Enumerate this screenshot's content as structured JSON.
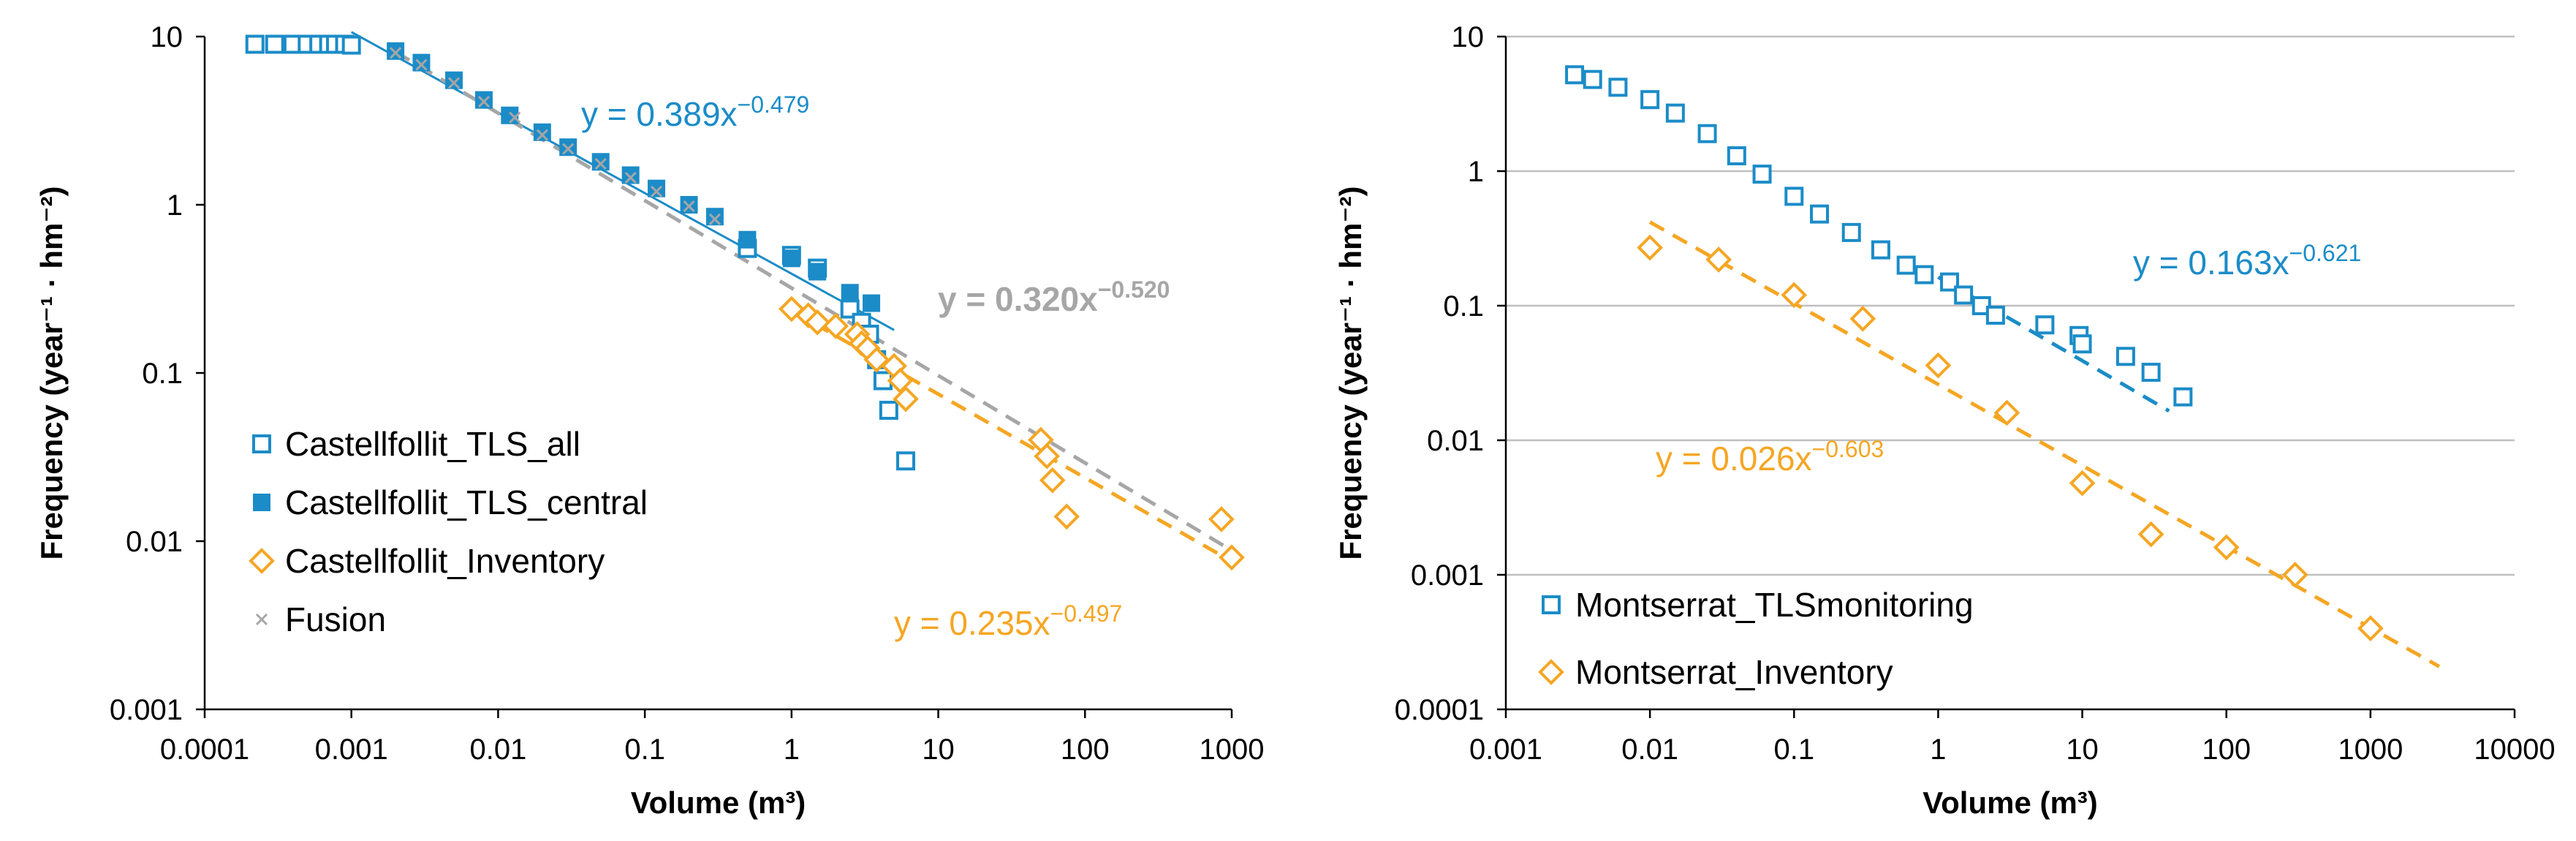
{
  "chart_data": [
    {
      "type": "scatter",
      "id": "castellfollit",
      "title": "",
      "xlabel": "Volume (m³)",
      "ylabel": "Frequency (year⁻¹ · hm⁻²)",
      "xscale": "log",
      "yscale": "log",
      "xlim": [
        0.0001,
        1000
      ],
      "ylim": [
        0.001,
        10
      ],
      "xticks": [
        0.0001,
        0.001,
        0.01,
        0.1,
        1,
        10,
        100,
        1000
      ],
      "xtick_labels": [
        "0.0001",
        "0.001",
        "0.01",
        "0.1",
        "1",
        "10",
        "100",
        "1000"
      ],
      "yticks": [
        0.001,
        0.01,
        0.1,
        1,
        10
      ],
      "ytick_labels": [
        "0.001",
        "0.01",
        "0.1",
        "1",
        "10"
      ],
      "grid": false,
      "legend_position": "bottom-left",
      "series": [
        {
          "name": "Castellfollit_TLS_all",
          "marker": "square-open",
          "color": "#1b8cc8",
          "x": [
            0.00022,
            0.0003,
            0.0004,
            0.0005,
            0.0006,
            0.0007,
            0.00078,
            0.0009,
            0.001,
            0.5,
            1.0,
            1.5,
            2.5,
            3.0,
            3.4,
            3.8,
            4.2,
            4.6,
            6.0
          ],
          "y": [
            9.0,
            9.0,
            9.0,
            9.0,
            9.0,
            9.0,
            9.0,
            9.0,
            8.9,
            0.55,
            0.5,
            0.42,
            0.24,
            0.2,
            0.17,
            0.12,
            0.09,
            0.06,
            0.03
          ]
        },
        {
          "name": "Castellfollit_TLS_central",
          "marker": "square-filled",
          "color": "#1b8cc8",
          "x": [
            0.002,
            0.003,
            0.005,
            0.008,
            0.012,
            0.02,
            0.03,
            0.05,
            0.08,
            0.12,
            0.2,
            0.3,
            0.5,
            1.0,
            1.5,
            2.5,
            3.5
          ],
          "y": [
            8.2,
            7.0,
            5.5,
            4.2,
            3.4,
            2.7,
            2.2,
            1.8,
            1.5,
            1.25,
            1.0,
            0.85,
            0.62,
            0.48,
            0.4,
            0.3,
            0.26
          ]
        },
        {
          "name": "Castellfollit_Inventory",
          "marker": "diamond-open",
          "color": "#f5a623",
          "x": [
            1.0,
            1.3,
            1.5,
            2.0,
            2.8,
            3.0,
            3.3,
            3.8,
            5.0,
            5.5,
            6.0,
            50,
            55,
            60,
            75,
            850,
            1000
          ],
          "y": [
            0.24,
            0.22,
            0.2,
            0.19,
            0.17,
            0.15,
            0.14,
            0.12,
            0.11,
            0.09,
            0.07,
            0.04,
            0.032,
            0.023,
            0.014,
            0.0135,
            0.008
          ]
        },
        {
          "name": "Fusion",
          "marker": "x",
          "color": "#a6a6a6",
          "x": [
            0.002,
            0.003,
            0.005,
            0.008,
            0.013,
            0.02,
            0.03,
            0.05,
            0.08,
            0.12,
            0.2,
            0.3
          ],
          "y": [
            8.0,
            6.8,
            5.3,
            4.1,
            3.3,
            2.6,
            2.15,
            1.75,
            1.45,
            1.2,
            0.98,
            0.82
          ]
        }
      ],
      "fits": [
        {
          "name": "TLS fit",
          "a": 0.389,
          "b": -0.479,
          "x_range": [
            0.001,
            5
          ],
          "color": "#1b8cc8",
          "style": "solid",
          "label_main": "y = 0.389x",
          "label_exp": "−0.479"
        },
        {
          "name": "Fusion fit",
          "a": 0.32,
          "b": -0.52,
          "x_range": [
            0.002,
            1000
          ],
          "color": "#a6a6a6",
          "style": "dashed",
          "label_main": "y = 0.320x",
          "label_exp": "−0.520"
        },
        {
          "name": "Inventory fit",
          "a": 0.235,
          "b": -0.497,
          "x_range": [
            1,
            1000
          ],
          "color": "#f5a623",
          "style": "dashed",
          "label_main": "y = 0.235x",
          "label_exp": "−0.497"
        }
      ]
    },
    {
      "type": "scatter",
      "id": "montserrat",
      "title": "",
      "xlabel": "Volume (m³)",
      "ylabel": "Frequency (year⁻¹ · hm⁻²)",
      "xscale": "log",
      "yscale": "log",
      "xlim": [
        0.001,
        10000
      ],
      "ylim": [
        0.0001,
        10
      ],
      "xticks": [
        0.001,
        0.01,
        0.1,
        1,
        10,
        100,
        1000,
        10000
      ],
      "xtick_labels": [
        "0.001",
        "0.01",
        "0.1",
        "1",
        "10",
        "100",
        "1000",
        "10000"
      ],
      "yticks": [
        0.0001,
        0.001,
        0.01,
        0.1,
        1,
        10
      ],
      "ytick_labels": [
        "0.0001",
        "0.001",
        "0.01",
        "0.1",
        "1",
        "10"
      ],
      "grid": true,
      "legend_position": "bottom-left",
      "series": [
        {
          "name": "Montserrat_TLSmonitoring",
          "marker": "square-open",
          "color": "#1b8cc8",
          "x": [
            0.003,
            0.004,
            0.006,
            0.01,
            0.015,
            0.025,
            0.04,
            0.06,
            0.1,
            0.15,
            0.25,
            0.4,
            0.6,
            0.8,
            1.2,
            1.5,
            2.0,
            2.5,
            5.5,
            9.5,
            10,
            20,
            30,
            50
          ],
          "y": [
            5.2,
            4.8,
            4.2,
            3.4,
            2.7,
            1.9,
            1.3,
            0.95,
            0.65,
            0.48,
            0.35,
            0.26,
            0.2,
            0.17,
            0.15,
            0.12,
            0.1,
            0.085,
            0.072,
            0.06,
            0.052,
            0.042,
            0.032,
            0.021
          ]
        },
        {
          "name": "Montserrat_Inventory",
          "marker": "diamond-open",
          "color": "#f5a623",
          "x": [
            0.01,
            0.03,
            0.1,
            0.3,
            1,
            3,
            10,
            30,
            100,
            300,
            1000
          ],
          "y": [
            0.27,
            0.22,
            0.12,
            0.08,
            0.036,
            0.016,
            0.0048,
            0.002,
            0.0016,
            0.001,
            0.0004
          ]
        }
      ],
      "fits": [
        {
          "name": "TLS fit",
          "a": 0.163,
          "b": -0.621,
          "x_range": [
            1,
            40
          ],
          "color": "#1b8cc8",
          "style": "dashed",
          "label_main": "y = 0.163x",
          "label_exp": "−0.621"
        },
        {
          "name": "Inventory fit",
          "a": 0.026,
          "b": -0.603,
          "x_range": [
            0.01,
            3000
          ],
          "color": "#f5a623",
          "style": "dashed",
          "label_main": "y = 0.026x",
          "label_exp": "−0.603"
        }
      ]
    }
  ]
}
